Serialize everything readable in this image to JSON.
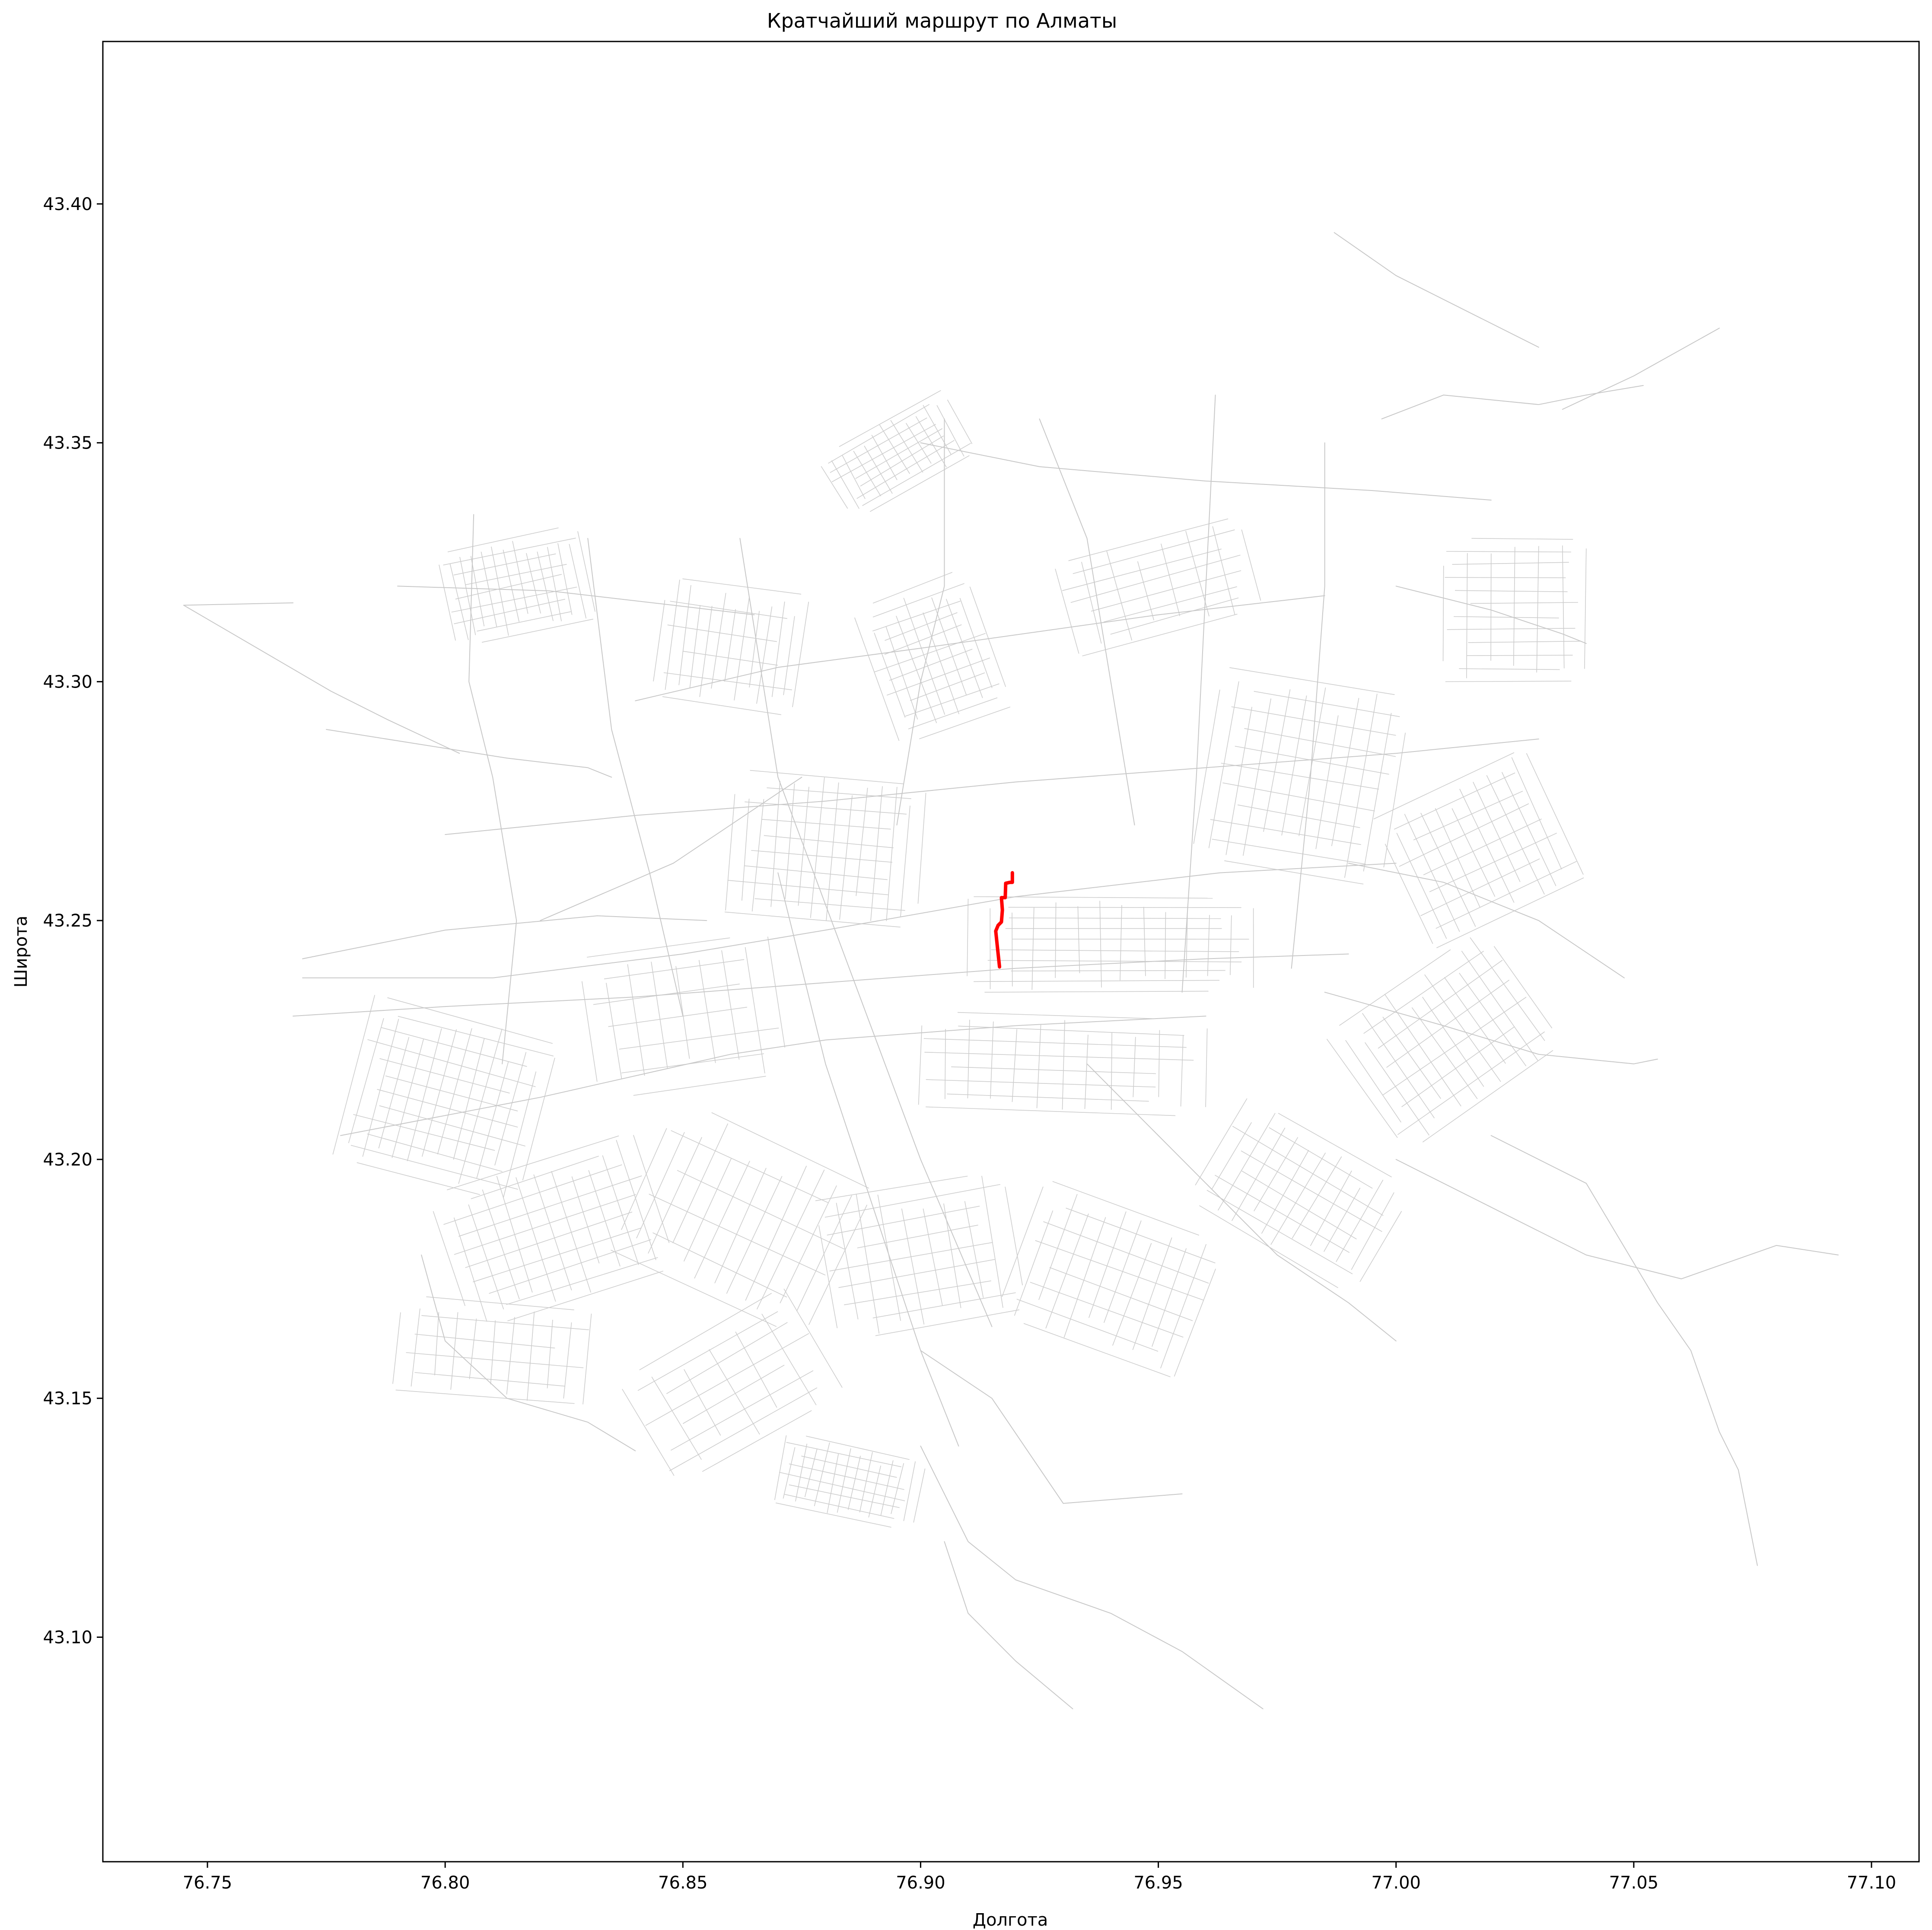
{
  "chart_data": {
    "type": "line",
    "title": "Кратчайший маршрут по Алматы",
    "xlabel": "Долгота",
    "ylabel": "Широта",
    "xlim": [
      76.728,
      77.11
    ],
    "ylim": [
      43.053,
      43.434
    ],
    "x_ticks": [
      {
        "value": 76.75,
        "label": "76.75"
      },
      {
        "value": 76.8,
        "label": "76.80"
      },
      {
        "value": 76.85,
        "label": "76.85"
      },
      {
        "value": 76.9,
        "label": "76.90"
      },
      {
        "value": 76.95,
        "label": "76.95"
      },
      {
        "value": 77.0,
        "label": "77.00"
      },
      {
        "value": 77.05,
        "label": "77.05"
      },
      {
        "value": 77.1,
        "label": "77.10"
      }
    ],
    "y_ticks": [
      {
        "value": 43.1,
        "label": "43.10"
      },
      {
        "value": 43.15,
        "label": "43.15"
      },
      {
        "value": 43.2,
        "label": "43.20"
      },
      {
        "value": 43.25,
        "label": "43.25"
      },
      {
        "value": 43.3,
        "label": "43.30"
      },
      {
        "value": 43.35,
        "label": "43.35"
      },
      {
        "value": 43.4,
        "label": "43.40"
      }
    ],
    "grid": false,
    "colors": {
      "road": "#c8c8c8",
      "route": "#ff0000"
    },
    "series": [
      {
        "role": "route",
        "color": "#ff0000",
        "x": [
          76.9166,
          76.9162,
          76.9158,
          76.9163,
          76.917,
          76.9172,
          76.917,
          76.9178,
          76.9179,
          76.9188,
          76.9193,
          76.9193
        ],
        "y": [
          43.2403,
          43.244,
          43.2478,
          43.249,
          43.2497,
          43.2522,
          43.2548,
          43.2548,
          43.2578,
          43.258,
          43.258,
          43.26
        ]
      }
    ],
    "road_network": [
      {
        "x": [
          76.745,
          76.768
        ],
        "y": [
          43.316,
          43.3165
        ]
      },
      {
        "x": [
          76.745,
          76.776,
          76.788,
          76.803
        ],
        "y": [
          43.316,
          43.298,
          43.292,
          43.285
        ]
      },
      {
        "x": [
          76.775,
          76.813,
          76.83,
          76.835
        ],
        "y": [
          43.29,
          43.284,
          43.282,
          43.28
        ]
      },
      {
        "x": [
          76.77,
          76.8,
          76.832,
          76.855
        ],
        "y": [
          43.242,
          43.248,
          43.251,
          43.25
        ]
      },
      {
        "x": [
          76.77,
          76.81,
          76.85,
          76.88,
          76.92,
          76.963,
          77.0
        ],
        "y": [
          43.238,
          43.238,
          43.243,
          43.248,
          43.255,
          43.26,
          43.262
        ]
      },
      {
        "x": [
          76.768,
          76.8,
          76.84,
          76.88,
          76.92,
          76.96,
          76.99
        ],
        "y": [
          43.23,
          43.232,
          43.234,
          43.237,
          43.24,
          43.242,
          43.243
        ]
      },
      {
        "x": [
          76.778,
          76.82,
          76.86,
          76.88,
          76.92,
          76.96
        ],
        "y": [
          43.205,
          43.213,
          43.222,
          43.225,
          43.228,
          43.23
        ]
      },
      {
        "x": [
          76.8,
          76.84,
          76.88,
          76.92,
          76.96,
          77.0,
          77.03
        ],
        "y": [
          43.268,
          43.272,
          43.275,
          43.279,
          43.282,
          43.285,
          43.288
        ]
      },
      {
        "x": [
          76.84,
          76.87,
          76.9,
          76.95,
          76.985
        ],
        "y": [
          43.296,
          43.303,
          43.307,
          43.314,
          43.318
        ]
      },
      {
        "x": [
          76.79,
          76.822,
          76.848,
          76.865
        ],
        "y": [
          43.32,
          43.319,
          43.316,
          43.314
        ]
      },
      {
        "x": [
          76.795,
          76.8,
          76.813,
          76.83,
          76.84
        ],
        "y": [
          43.18,
          43.162,
          43.15,
          43.145,
          43.139
        ]
      },
      {
        "x": [
          76.806,
          76.805,
          76.81,
          76.815,
          76.812
        ],
        "y": [
          43.335,
          43.3,
          43.28,
          43.25,
          43.22
        ]
      },
      {
        "x": [
          76.83,
          76.835,
          76.843,
          76.85
        ],
        "y": [
          43.33,
          43.29,
          43.26,
          43.23
        ]
      },
      {
        "x": [
          76.862,
          76.87,
          76.885,
          76.9,
          76.915
        ],
        "y": [
          43.33,
          43.28,
          43.24,
          43.2,
          43.165
        ]
      },
      {
        "x": [
          76.87,
          76.88,
          76.89,
          76.9,
          76.908
        ],
        "y": [
          43.26,
          43.22,
          43.19,
          43.16,
          43.14
        ]
      },
      {
        "x": [
          76.905,
          76.905,
          76.9,
          76.895
        ],
        "y": [
          43.355,
          43.32,
          43.3,
          43.27
        ]
      },
      {
        "x": [
          76.9,
          76.925,
          76.96,
          76.995,
          77.02
        ],
        "y": [
          43.35,
          43.345,
          43.342,
          43.34,
          43.338
        ]
      },
      {
        "x": [
          76.925,
          76.935,
          76.94,
          76.945
        ],
        "y": [
          43.355,
          43.33,
          43.3,
          43.27
        ]
      },
      {
        "x": [
          76.962,
          76.96,
          76.958,
          76.955
        ],
        "y": [
          43.36,
          43.32,
          43.28,
          43.235
        ]
      },
      {
        "x": [
          76.985,
          76.985,
          76.982,
          76.978
        ],
        "y": [
          43.35,
          43.32,
          43.28,
          43.24
        ]
      },
      {
        "x": [
          76.987,
          77.0,
          77.02,
          77.03
        ],
        "y": [
          43.394,
          43.385,
          43.375,
          43.37
        ]
      },
      {
        "x": [
          76.997,
          77.01,
          77.03,
          77.04,
          77.052
        ],
        "y": [
          43.355,
          43.36,
          43.358,
          43.36,
          43.362
        ]
      },
      {
        "x": [
          77.035,
          77.05,
          77.068
        ],
        "y": [
          43.357,
          43.364,
          43.374
        ]
      },
      {
        "x": [
          77.0,
          77.02,
          77.035,
          77.04
        ],
        "y": [
          43.32,
          43.315,
          43.31,
          43.308
        ]
      },
      {
        "x": [
          77.0,
          77.02,
          77.04,
          77.06,
          77.08,
          77.093
        ],
        "y": [
          43.2,
          43.19,
          43.18,
          43.175,
          43.182,
          43.18
        ]
      },
      {
        "x": [
          77.02,
          77.04,
          77.055,
          77.062,
          77.068,
          77.072,
          77.076
        ],
        "y": [
          43.205,
          43.195,
          43.17,
          43.16,
          43.143,
          43.135,
          43.115
        ]
      },
      {
        "x": [
          76.985,
          77.01,
          77.03,
          77.05,
          77.055
        ],
        "y": [
          43.235,
          43.228,
          43.222,
          43.22,
          43.221
        ]
      },
      {
        "x": [
          76.99,
          77.01,
          77.03,
          77.048
        ],
        "y": [
          43.262,
          43.258,
          43.25,
          43.238
        ]
      },
      {
        "x": [
          76.9,
          76.91,
          76.92,
          76.94,
          76.955,
          76.972
        ],
        "y": [
          43.14,
          43.12,
          43.112,
          43.105,
          43.097,
          43.085
        ]
      },
      {
        "x": [
          76.905,
          76.91,
          76.92,
          76.932
        ],
        "y": [
          43.12,
          43.105,
          43.095,
          43.085
        ]
      },
      {
        "x": [
          76.935,
          76.95,
          76.96,
          76.975,
          76.99,
          77.0
        ],
        "y": [
          43.22,
          43.205,
          43.195,
          43.18,
          43.17,
          43.162
        ]
      },
      {
        "x": [
          76.9,
          76.915,
          76.93,
          76.955
        ],
        "y": [
          43.16,
          43.15,
          43.128,
          43.13
        ]
      },
      {
        "x": [
          76.82,
          76.848,
          76.86,
          76.875
        ],
        "y": [
          43.25,
          43.262,
          43.27,
          43.28
        ]
      }
    ]
  }
}
